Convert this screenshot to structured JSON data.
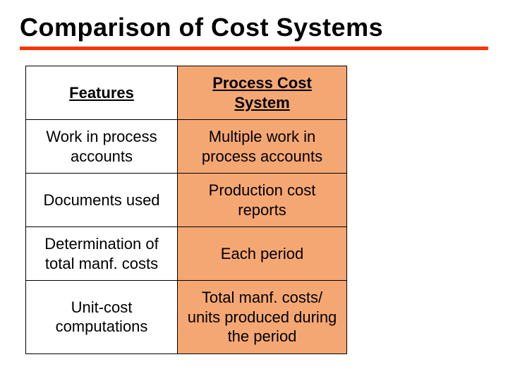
{
  "title": "Comparison of Cost Systems",
  "colors": {
    "rule": "#ff3300",
    "process_bg": "#f5a773",
    "border": "#000000",
    "text": "#000000",
    "page_bg": "#ffffff"
  },
  "table": {
    "headers": {
      "features": "Features",
      "process": "Process Cost System"
    },
    "rows": [
      {
        "feature": "Work in process accounts",
        "process": "Multiple work in process accounts"
      },
      {
        "feature": "Documents used",
        "process": "Production cost reports"
      },
      {
        "feature": "Determination of total manf. costs",
        "process": "Each period"
      },
      {
        "feature": "Unit-cost computations",
        "process": "Total manf. costs/ units produced during the period"
      }
    ]
  }
}
